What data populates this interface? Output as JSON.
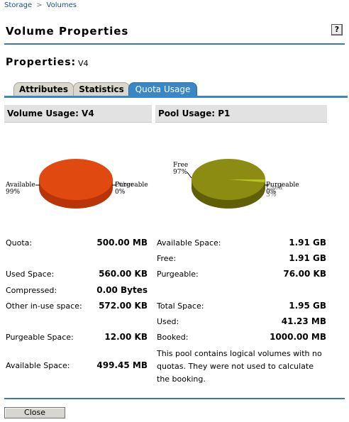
{
  "breadcrumb": {
    "items": [
      "Storage",
      "Volumes"
    ]
  },
  "page": {
    "title": "Volume Properties",
    "help": "?"
  },
  "properties": {
    "label": "Properties:",
    "value": "V4"
  },
  "tabs": [
    {
      "label": "Attributes",
      "active": false
    },
    {
      "label": "Statistics",
      "active": false
    },
    {
      "label": "Quota Usage",
      "active": true
    }
  ],
  "volume_usage": {
    "header": "Volume Usage: V4",
    "chart": {
      "available_label": "Available",
      "available_pct": "99%",
      "purgeable_label": "Purgeable",
      "purgeable_pct": "0%",
      "overlap_label": "Other"
    },
    "rows": [
      {
        "label": "Quota:",
        "value": "500.00 MB"
      },
      {
        "label": "Used Space:",
        "value": "560.00 KB"
      },
      {
        "label": "Compressed:",
        "value": "0.00 Bytes"
      },
      {
        "label": "Other in-use space:",
        "value": "572.00 KB"
      },
      {
        "label": "Purgeable Space:",
        "value": "12.00 KB"
      },
      {
        "label": "Available Space:",
        "value": "499.45 MB"
      }
    ]
  },
  "pool_usage": {
    "header": "Pool Usage: P1",
    "chart": {
      "free_label": "Free",
      "free_pct": "97%",
      "purgeable_label": "Purgeable",
      "purgeable_pct": "0%",
      "overlap_label": "Used",
      "overlap_pct": "3%"
    },
    "rows": [
      {
        "label": "Available Space:",
        "value": "1.91 GB"
      },
      {
        "label": "Free:",
        "value": "1.91 GB"
      },
      {
        "label": "Purgeable:",
        "value": "76.00 KB"
      },
      {
        "label": "Total Space:",
        "value": "1.95 GB"
      },
      {
        "label": "Used:",
        "value": "41.23 MB"
      },
      {
        "label": "Booked:",
        "value": "1000.00 MB"
      }
    ],
    "note": "This pool contains logical volumes with no quotas. They were not used to calculate the booking."
  },
  "colors": {
    "accent": "#3a86c6",
    "volume_pie": "#e04a10",
    "pool_pie": "#8c8c12"
  },
  "buttons": {
    "close": "Close"
  }
}
